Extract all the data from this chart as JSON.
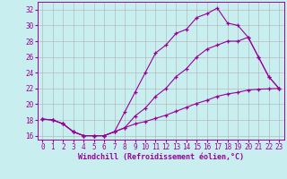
{
  "xlabel": "Windchill (Refroidissement éolien,°C)",
  "bg_color": "#c8eef0",
  "line_color": "#990099",
  "grid_color": "#b0b0b0",
  "xlim": [
    -0.5,
    23.5
  ],
  "ylim": [
    15.5,
    33.0
  ],
  "xticks": [
    0,
    1,
    2,
    3,
    4,
    5,
    6,
    7,
    8,
    9,
    10,
    11,
    12,
    13,
    14,
    15,
    16,
    17,
    18,
    19,
    20,
    21,
    22,
    23
  ],
  "yticks": [
    16,
    18,
    20,
    22,
    24,
    26,
    28,
    30,
    32
  ],
  "line1_x": [
    0,
    1,
    2,
    3,
    4,
    5,
    6,
    7,
    8,
    9,
    10,
    11,
    12,
    13,
    14,
    15,
    16,
    17,
    18,
    19,
    20,
    21,
    22,
    23
  ],
  "line1_y": [
    18.1,
    18.0,
    17.5,
    16.5,
    16.0,
    16.0,
    16.0,
    16.5,
    19.0,
    21.5,
    24.0,
    26.5,
    27.5,
    29.0,
    29.5,
    31.0,
    31.5,
    32.2,
    30.3,
    30.0,
    28.5,
    26.0,
    23.5,
    22.0
  ],
  "line2_x": [
    0,
    1,
    2,
    3,
    4,
    5,
    6,
    7,
    8,
    9,
    10,
    11,
    12,
    13,
    14,
    15,
    16,
    17,
    18,
    19,
    20,
    21,
    22,
    23
  ],
  "line2_y": [
    18.1,
    18.0,
    17.5,
    16.5,
    16.0,
    16.0,
    16.0,
    16.5,
    17.0,
    18.5,
    19.5,
    21.0,
    22.0,
    23.5,
    24.5,
    26.0,
    27.0,
    27.5,
    28.0,
    28.0,
    28.5,
    26.0,
    23.5,
    22.0
  ],
  "line3_x": [
    0,
    1,
    2,
    3,
    4,
    5,
    6,
    7,
    8,
    9,
    10,
    11,
    12,
    13,
    14,
    15,
    16,
    17,
    18,
    19,
    20,
    21,
    22,
    23
  ],
  "line3_y": [
    18.1,
    18.0,
    17.5,
    16.5,
    16.0,
    16.0,
    16.0,
    16.5,
    17.0,
    17.5,
    17.8,
    18.2,
    18.6,
    19.1,
    19.6,
    20.1,
    20.5,
    21.0,
    21.3,
    21.5,
    21.8,
    21.9,
    21.95,
    22.0
  ],
  "tick_fontsize": 5.5,
  "xlabel_fontsize": 6.0
}
